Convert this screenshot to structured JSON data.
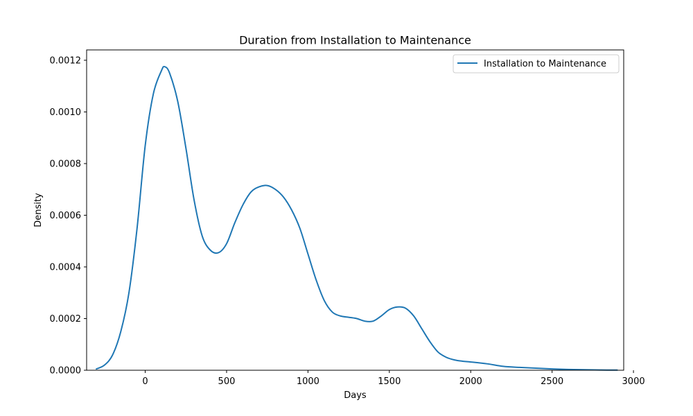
{
  "chart_data": {
    "type": "line",
    "title": "Duration from Installation to Maintenance",
    "xlabel": "Days",
    "ylabel": "Density",
    "xlim": [
      -360,
      2940
    ],
    "ylim": [
      0,
      0.00124
    ],
    "xticks": [
      0,
      500,
      1000,
      1500,
      2000,
      2500,
      3000
    ],
    "xtick_labels": [
      "0",
      "500",
      "1000",
      "1500",
      "2000",
      "2500",
      "3000"
    ],
    "yticks": [
      0,
      0.0002,
      0.0004,
      0.0006,
      0.0008,
      0.001,
      0.0012
    ],
    "ytick_labels": [
      "0.0000",
      "0.0002",
      "0.0004",
      "0.0006",
      "0.0008",
      "0.0010",
      "0.0012"
    ],
    "grid": false,
    "legend": {
      "position": "top-right",
      "entries": [
        "Installation to Maintenance"
      ]
    },
    "series": [
      {
        "name": "Installation to Maintenance",
        "color": "#1f77b4",
        "x": [
          -300,
          -250,
          -200,
          -150,
          -100,
          -50,
          0,
          50,
          100,
          120,
          150,
          200,
          250,
          300,
          350,
          400,
          450,
          500,
          550,
          600,
          650,
          700,
          750,
          800,
          850,
          900,
          950,
          1000,
          1050,
          1100,
          1150,
          1200,
          1250,
          1300,
          1350,
          1400,
          1450,
          1500,
          1550,
          1600,
          1650,
          1700,
          1750,
          1800,
          1850,
          1900,
          1950,
          2000,
          2100,
          2200,
          2300,
          2400,
          2500,
          2600,
          2700,
          2800,
          2900
        ],
        "y": [
          5e-06,
          2e-05,
          6e-05,
          0.00015,
          0.0003,
          0.00055,
          0.00087,
          0.00107,
          0.00116,
          0.001175,
          0.00115,
          0.00104,
          0.00086,
          0.00066,
          0.00052,
          0.000465,
          0.000455,
          0.00049,
          0.00057,
          0.00064,
          0.00069,
          0.00071,
          0.000715,
          0.0007,
          0.00067,
          0.00062,
          0.00055,
          0.00045,
          0.00035,
          0.00027,
          0.000225,
          0.00021,
          0.000205,
          0.0002,
          0.00019,
          0.00019,
          0.00021,
          0.000235,
          0.000245,
          0.00024,
          0.00021,
          0.00016,
          0.00011,
          7e-05,
          5e-05,
          4e-05,
          3.5e-05,
          3.2e-05,
          2.5e-05,
          1.5e-05,
          1.1e-05,
          8e-06,
          5e-06,
          3e-06,
          2e-06,
          1e-06,
          5e-07
        ]
      }
    ]
  }
}
